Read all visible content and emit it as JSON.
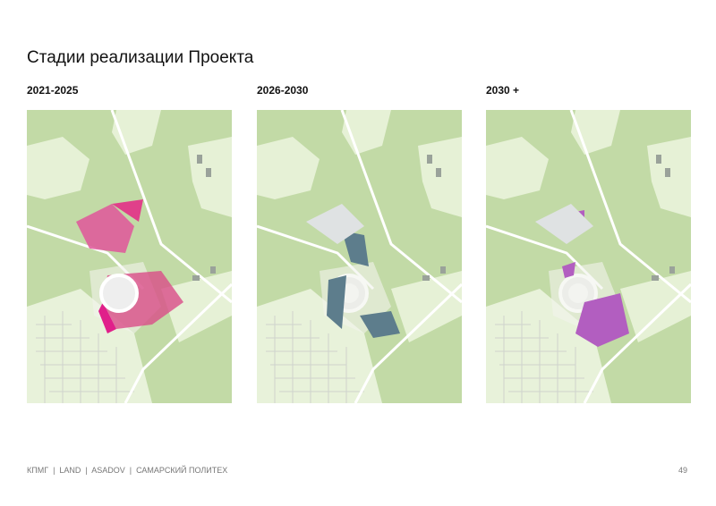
{
  "header": {
    "title": "Стадии реализации Проекта"
  },
  "panels": [
    {
      "label": "2021-2025"
    },
    {
      "label": "2026-2030"
    },
    {
      "label": "2030 +"
    }
  ],
  "footer": {
    "text": "КПМГ  |  LAND  |  ASADOV  |  САМАРСКИЙ ПОЛИТЕХ",
    "page": "49"
  }
}
